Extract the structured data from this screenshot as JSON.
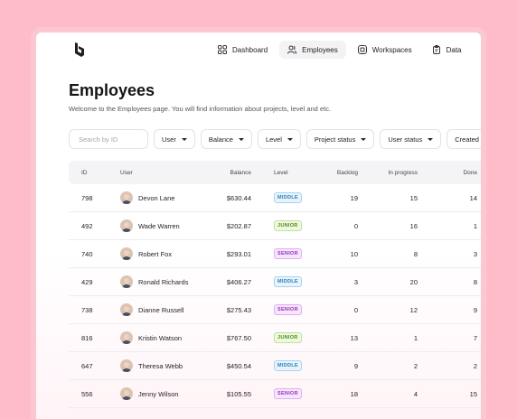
{
  "nav": {
    "items": [
      {
        "label": "Dashboard",
        "icon": "grid-icon",
        "active": false
      },
      {
        "label": "Employees",
        "icon": "users-icon",
        "active": true
      },
      {
        "label": "Workspaces",
        "icon": "workspace-icon",
        "active": false
      },
      {
        "label": "Data",
        "icon": "clipboard-icon",
        "active": false
      }
    ]
  },
  "page": {
    "title": "Employees",
    "subtitle": "Welcome to the Employees page. You will find information about projects, level and etc."
  },
  "filters": {
    "search_placeholder": "Search by ID",
    "dropdowns": [
      "User",
      "Balance",
      "Level",
      "Project status",
      "User status",
      "Created"
    ]
  },
  "table": {
    "columns": {
      "id": "ID",
      "user": "User",
      "balance": "Balance",
      "level": "Level",
      "backlog": "Backlog",
      "in_progress": "In progress",
      "done": "Done"
    },
    "rows": [
      {
        "id": "798",
        "user": "Devon Lane",
        "balance": "$630.44",
        "level": "MIDDLE",
        "backlog": "19",
        "in_progress": "15",
        "done": "14"
      },
      {
        "id": "492",
        "user": "Wade Warren",
        "balance": "$202.87",
        "level": "JUNIOR",
        "backlog": "0",
        "in_progress": "16",
        "done": "1"
      },
      {
        "id": "740",
        "user": "Robert Fox",
        "balance": "$293.01",
        "level": "SENIOR",
        "backlog": "10",
        "in_progress": "8",
        "done": "3"
      },
      {
        "id": "429",
        "user": "Ronald Richards",
        "balance": "$406.27",
        "level": "MIDDLE",
        "backlog": "3",
        "in_progress": "20",
        "done": "8"
      },
      {
        "id": "738",
        "user": "Dianne Russell",
        "balance": "$275.43",
        "level": "SENIOR",
        "backlog": "0",
        "in_progress": "12",
        "done": "9"
      },
      {
        "id": "816",
        "user": "Kristin Watson",
        "balance": "$767.50",
        "level": "JUNIOR",
        "backlog": "13",
        "in_progress": "1",
        "done": "7"
      },
      {
        "id": "647",
        "user": "Theresa Webb",
        "balance": "$450.54",
        "level": "MIDDLE",
        "backlog": "9",
        "in_progress": "2",
        "done": "2"
      },
      {
        "id": "556",
        "user": "Jenny Wilson",
        "balance": "$105.55",
        "level": "SENIOR",
        "backlog": "18",
        "in_progress": "4",
        "done": "15"
      }
    ]
  },
  "level_colors": {
    "MIDDLE": {
      "text": "#2a7fb8",
      "bg": "#e6f3fb",
      "border": "#a9d3ee"
    },
    "JUNIOR": {
      "text": "#4f8a12",
      "bg": "#eef8df",
      "border": "#bfe39a"
    },
    "SENIOR": {
      "text": "#9b2fc4",
      "bg": "#f5e6fb",
      "border": "#dcb0ef"
    }
  }
}
